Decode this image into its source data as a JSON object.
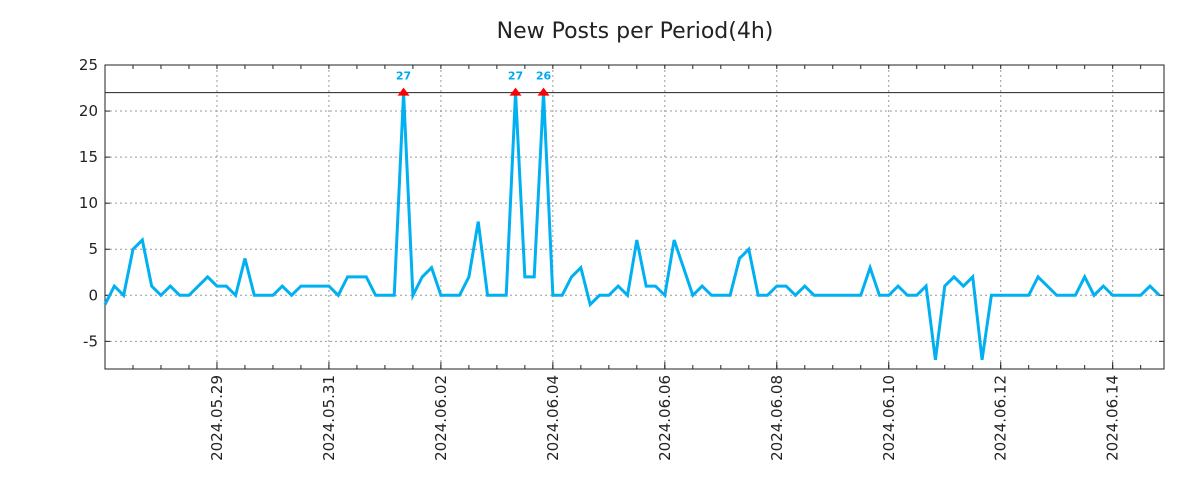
{
  "chart_data": {
    "type": "line",
    "title": "New Posts per Period(4h)",
    "xlabel": "",
    "ylabel": "",
    "start": "2024.05.27 00:00",
    "period_hours": 4,
    "xlim_hours": [
      0,
      454
    ],
    "ylim": [
      -8,
      25
    ],
    "yticks": [
      -5,
      0,
      5,
      10,
      15,
      20,
      25
    ],
    "ytick_labels": [
      "-5",
      "0",
      "5",
      "10",
      "15",
      "20",
      "25"
    ],
    "xticks_hours": [
      48,
      96,
      144,
      192,
      240,
      288,
      336,
      384,
      432
    ],
    "xtick_labels": [
      "2024.05.29",
      "2024.05.31",
      "2024.06.02",
      "2024.06.04",
      "2024.06.06",
      "2024.06.08",
      "2024.06.10",
      "2024.06.12",
      "2024.06.14"
    ],
    "minor_tick_hours": 12,
    "clip_value": 22,
    "grid": true,
    "line_color": "#00b0f0",
    "marker_color": "#ff0000",
    "values": [
      -1,
      1,
      0,
      5,
      6,
      1,
      0,
      1,
      0,
      0,
      1,
      2,
      1,
      1,
      0,
      4,
      0,
      0,
      0,
      1,
      0,
      1,
      1,
      1,
      1,
      0,
      2,
      2,
      2,
      0,
      0,
      0,
      27,
      0,
      2,
      3,
      0,
      0,
      0,
      2,
      8,
      0,
      0,
      0,
      27,
      2,
      2,
      26,
      0,
      0,
      2,
      3,
      -1,
      0,
      0,
      1,
      0,
      6,
      1,
      1,
      0,
      6,
      3,
      0,
      1,
      0,
      0,
      0,
      4,
      5,
      0,
      0,
      1,
      1,
      0,
      1,
      0,
      0,
      0,
      0,
      0,
      0,
      3,
      0,
      0,
      1,
      0,
      0,
      1,
      -7,
      1,
      2,
      1,
      2,
      -7,
      0,
      0,
      0,
      0,
      0,
      2,
      1,
      0,
      0,
      0,
      2,
      0,
      1,
      0,
      0,
      0,
      0,
      1,
      0
    ],
    "peak_labels": [
      "27",
      "27",
      "26"
    ]
  }
}
